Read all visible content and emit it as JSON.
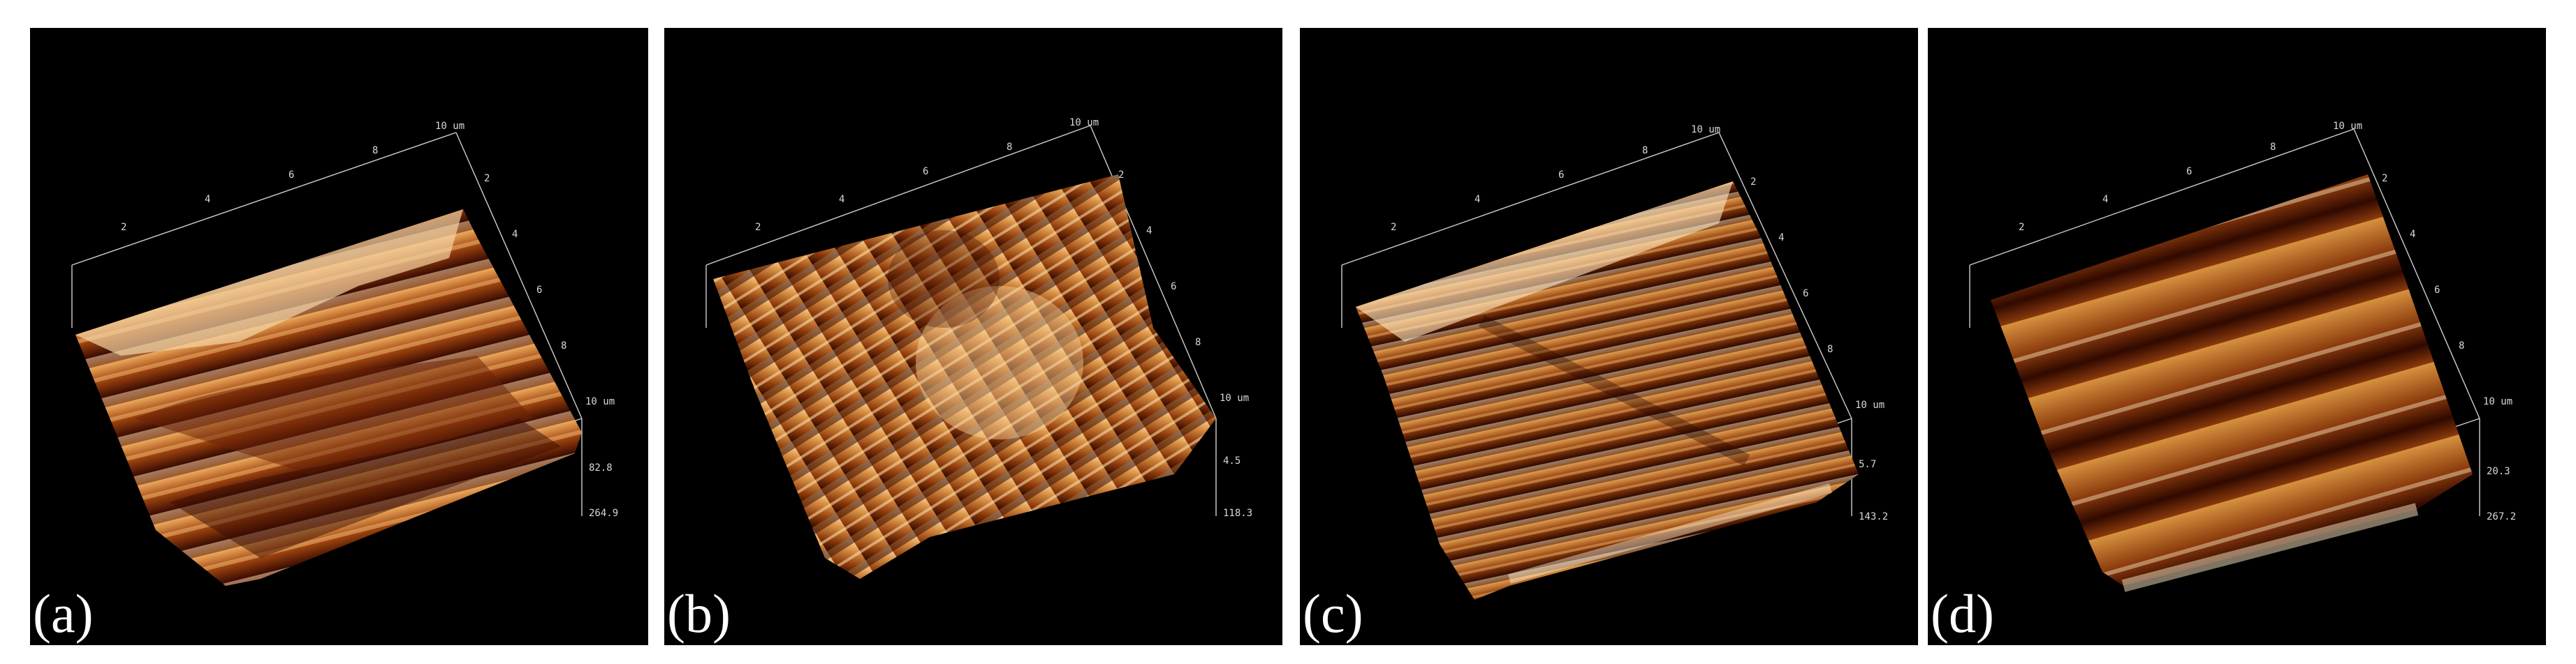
{
  "panels": [
    {
      "label": "(a)",
      "axis": {
        "x_ticks": [
          "2",
          "4",
          "6",
          "8",
          "10 um"
        ],
        "y_ticks": [
          "2",
          "4",
          "6",
          "8",
          "10 um"
        ],
        "x_end": "10 um",
        "y_end": "10 um",
        "z_label1": "82.8",
        "z_label2": "264.9",
        "z_mid": "10 um"
      },
      "colors": {
        "dark": "#3a0c02",
        "mid": "#a1450f",
        "light": "#e8a55a",
        "highlight": "#fff1d2"
      }
    },
    {
      "label": "(b)",
      "axis": {
        "x_ticks": [
          "2",
          "4",
          "6",
          "8",
          "10 um"
        ],
        "y_ticks": [
          "2",
          "4",
          "6",
          "8",
          "10 um"
        ],
        "x_end": "10 um",
        "y_end": "10 um",
        "z_label1": "4.5",
        "z_label2": "118.3",
        "z_mid": "10 um"
      },
      "colors": {
        "dark": "#2c0800",
        "mid": "#8d3a0a",
        "light": "#df9a4c",
        "highlight": "#fff0cf"
      }
    },
    {
      "label": "(c)",
      "axis": {
        "x_ticks": [
          "2",
          "4",
          "6",
          "8",
          "10 um"
        ],
        "y_ticks": [
          "2",
          "4",
          "6",
          "8",
          "10 um"
        ],
        "x_end": "10 um",
        "y_end": "10 um",
        "z_label1": "5.7",
        "z_label2": "143.2",
        "z_mid": "10 um"
      },
      "colors": {
        "dark": "#2e0900",
        "mid": "#93400c",
        "light": "#e3a153",
        "highlight": "#fff3d6"
      }
    },
    {
      "label": "(d)",
      "axis": {
        "x_ticks": [
          "2",
          "4",
          "6",
          "8",
          "10 um"
        ],
        "y_ticks": [
          "2",
          "4",
          "6",
          "8",
          "10 um"
        ],
        "x_end": "10 um",
        "y_end": "10 um",
        "z_label1": "20.3",
        "z_label2": "267.2",
        "z_mid": "10 um"
      },
      "colors": {
        "dark": "#300900",
        "mid": "#8a3a0c",
        "light": "#d7913f",
        "highlight": "#fbe7c2"
      }
    }
  ]
}
